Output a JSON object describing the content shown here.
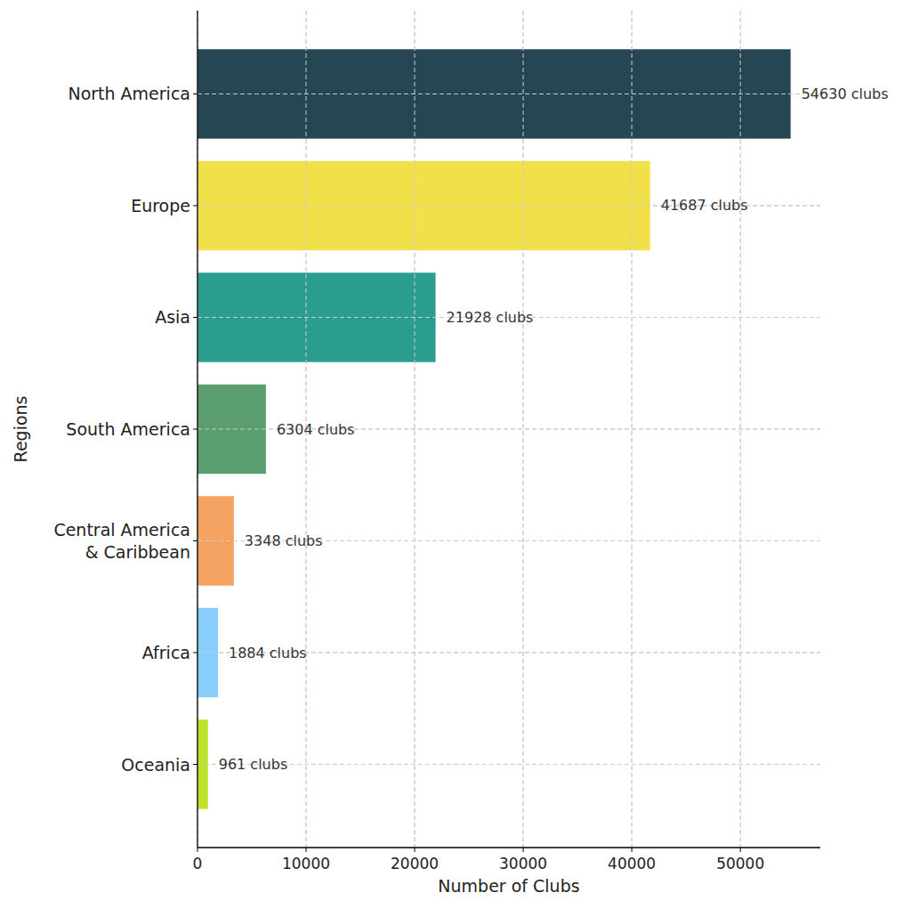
{
  "chart_data": {
    "type": "bar",
    "orientation": "horizontal",
    "x_label": "Number of Clubs",
    "y_label": "Regions",
    "categories": [
      "North America",
      "Europe",
      "Asia",
      "South America",
      "Central America\n& Caribbean",
      "Africa",
      "Oceania"
    ],
    "values": [
      54630,
      41687,
      21928,
      6304,
      3348,
      1884,
      961
    ],
    "value_labels": [
      "54630 clubs",
      "41687 clubs",
      "21928 clubs",
      "6304 clubs",
      "3348 clubs",
      "1884 clubs",
      "961 clubs"
    ],
    "colors": [
      "#264653",
      "#f2e04b",
      "#2a9d8f",
      "#5a9e6f",
      "#f4a261",
      "#87cefa",
      "#bee32b"
    ],
    "xlim": [
      0,
      57360
    ],
    "xticks": [
      0,
      10000,
      20000,
      30000,
      40000,
      50000
    ],
    "grid": true,
    "data_labels": true
  }
}
